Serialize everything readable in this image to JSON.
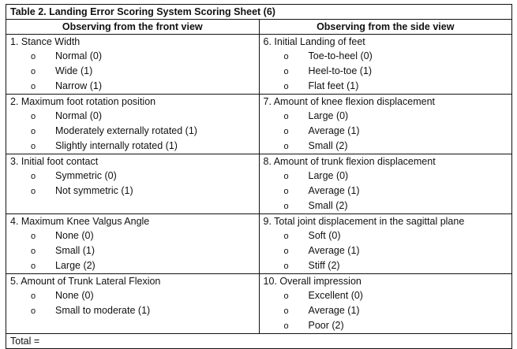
{
  "title": "Table 2. Landing Error Scoring System Scoring Sheet (6)",
  "headers": [
    "Observing from the front view",
    "Observing from the side view"
  ],
  "rows": [
    [
      {
        "question": "1. Stance Width",
        "options": [
          "Normal (0)",
          "Wide (1)",
          "Narrow (1)"
        ]
      },
      {
        "question": "6.  Initial Landing of feet",
        "options": [
          "Toe-to-heel (0)",
          "Heel-to-toe (1)",
          "Flat feet (1)"
        ]
      }
    ],
    [
      {
        "question": "2. Maximum foot rotation position",
        "options": [
          "Normal (0)",
          "Moderately externally rotated (1)",
          "Slightly internally rotated (1)"
        ]
      },
      {
        "question": "7. Amount of knee flexion displacement",
        "options": [
          "Large (0)",
          "Average (1)",
          "Small (2)"
        ]
      }
    ],
    [
      {
        "question": "3. Initial foot contact",
        "options": [
          "Symmetric (0)",
          "Not symmetric (1)"
        ]
      },
      {
        "question": "8. Amount of trunk flexion displacement",
        "options": [
          "Large (0)",
          "Average (1)",
          "Small (2)"
        ]
      }
    ],
    [
      {
        "question": "4. Maximum Knee Valgus Angle",
        "options": [
          "None (0)",
          "Small (1)",
          "Large (2)"
        ]
      },
      {
        "question": "9. Total joint displacement in the sagittal plane",
        "options": [
          "Soft (0)",
          "Average (1)",
          "Stiff (2)"
        ]
      }
    ],
    [
      {
        "question": "5.  Amount of Trunk Lateral Flexion",
        "options": [
          "None (0)",
          "Small to moderate (1)"
        ]
      },
      {
        "question": "10. Overall impression",
        "options": [
          "Excellent (0)",
          "Average (1)",
          "Poor (2)"
        ]
      }
    ]
  ],
  "bullet": "o",
  "total_label": "Total ="
}
